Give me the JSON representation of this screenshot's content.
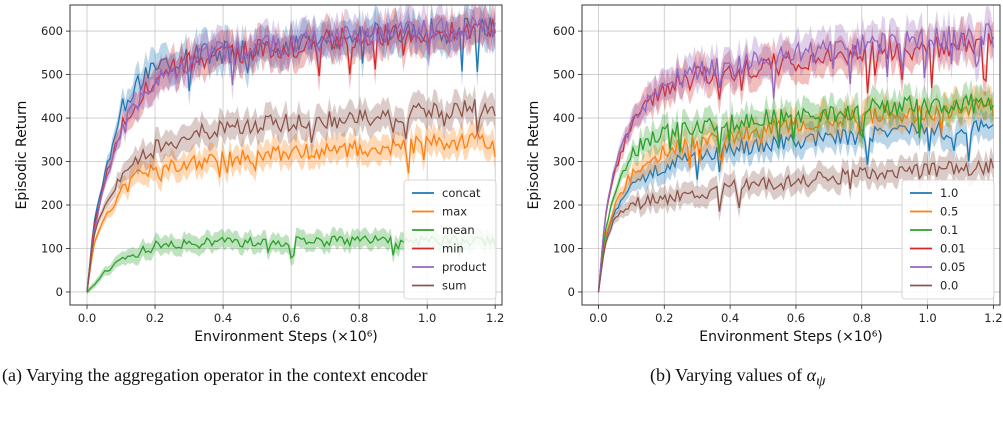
{
  "chart_data": [
    {
      "type": "line",
      "xlabel": "Environment Steps (×10⁶)",
      "ylabel": "Episodic Return",
      "xlim": [
        -0.05,
        1.22
      ],
      "ylim": [
        -30,
        660
      ],
      "xticks": [
        "0.0",
        "0.2",
        "0.4",
        "0.6",
        "0.8",
        "1.0",
        "1.2"
      ],
      "yticks": [
        "0",
        "100",
        "200",
        "300",
        "400",
        "500",
        "600"
      ],
      "grid": true,
      "legend_position": "lower-right",
      "caption": "(a) Varying the aggregation operator in the context encoder",
      "series": [
        {
          "name": "concat",
          "color": "#1f77b4",
          "x": [
            0.0,
            0.02,
            0.05,
            0.1,
            0.15,
            0.2,
            0.3,
            0.4,
            0.6,
            0.8,
            1.0,
            1.2
          ],
          "y": [
            0,
            160,
            260,
            420,
            480,
            520,
            540,
            550,
            570,
            590,
            600,
            605
          ]
        },
        {
          "name": "max",
          "color": "#ff7f0e",
          "x": [
            0.0,
            0.02,
            0.05,
            0.1,
            0.15,
            0.2,
            0.3,
            0.4,
            0.6,
            0.8,
            1.0,
            1.2
          ],
          "y": [
            0,
            110,
            170,
            230,
            265,
            280,
            295,
            305,
            320,
            330,
            340,
            350
          ]
        },
        {
          "name": "mean",
          "color": "#2ca02c",
          "x": [
            0.0,
            0.02,
            0.05,
            0.1,
            0.15,
            0.2,
            0.3,
            0.4,
            0.6,
            0.8,
            1.0,
            1.2
          ],
          "y": [
            0,
            15,
            45,
            70,
            90,
            105,
            112,
            115,
            116,
            118,
            118,
            118
          ]
        },
        {
          "name": "min",
          "color": "#d62728",
          "x": [
            0.0,
            0.02,
            0.05,
            0.1,
            0.15,
            0.2,
            0.3,
            0.4,
            0.6,
            0.8,
            1.0,
            1.2
          ],
          "y": [
            0,
            150,
            250,
            380,
            440,
            490,
            530,
            545,
            565,
            585,
            595,
            600
          ]
        },
        {
          "name": "product",
          "color": "#9467bd",
          "x": [
            0.0,
            0.02,
            0.05,
            0.1,
            0.15,
            0.2,
            0.3,
            0.4,
            0.6,
            0.8,
            1.0,
            1.2
          ],
          "y": [
            0,
            140,
            240,
            370,
            430,
            485,
            530,
            555,
            575,
            590,
            600,
            605
          ]
        },
        {
          "name": "sum",
          "color": "#8c564b",
          "x": [
            0.0,
            0.02,
            0.05,
            0.1,
            0.15,
            0.2,
            0.3,
            0.4,
            0.6,
            0.8,
            1.0,
            1.2
          ],
          "y": [
            0,
            130,
            200,
            260,
            300,
            330,
            360,
            375,
            390,
            400,
            415,
            425
          ]
        }
      ]
    },
    {
      "type": "line",
      "xlabel": "Environment Steps (×10⁶)",
      "ylabel": "Episodic Return",
      "xlim": [
        -0.05,
        1.22
      ],
      "ylim": [
        -30,
        660
      ],
      "xticks": [
        "0.0",
        "0.2",
        "0.4",
        "0.6",
        "0.8",
        "1.0",
        "1.2"
      ],
      "yticks": [
        "0",
        "100",
        "200",
        "300",
        "400",
        "500",
        "600"
      ],
      "grid": true,
      "legend_position": "lower-right",
      "caption_prefix": "(b) Varying values of ",
      "caption_symbol": "α",
      "caption_subscript": "ψ",
      "series": [
        {
          "name": "1.0",
          "color": "#1f77b4",
          "x": [
            0.0,
            0.02,
            0.05,
            0.1,
            0.15,
            0.2,
            0.3,
            0.4,
            0.6,
            0.8,
            1.0,
            1.2
          ],
          "y": [
            0,
            120,
            190,
            240,
            270,
            290,
            310,
            330,
            350,
            360,
            370,
            375
          ]
        },
        {
          "name": "0.5",
          "color": "#ff7f0e",
          "x": [
            0.0,
            0.02,
            0.05,
            0.1,
            0.15,
            0.2,
            0.3,
            0.4,
            0.6,
            0.8,
            1.0,
            1.2
          ],
          "y": [
            0,
            125,
            200,
            270,
            300,
            320,
            345,
            360,
            390,
            405,
            415,
            425
          ]
        },
        {
          "name": "0.1",
          "color": "#2ca02c",
          "x": [
            0.0,
            0.02,
            0.05,
            0.1,
            0.15,
            0.2,
            0.3,
            0.4,
            0.6,
            0.8,
            1.0,
            1.2
          ],
          "y": [
            0,
            140,
            230,
            320,
            350,
            365,
            380,
            390,
            405,
            420,
            430,
            435
          ]
        },
        {
          "name": "0.01",
          "color": "#d62728",
          "x": [
            0.0,
            0.02,
            0.05,
            0.1,
            0.15,
            0.2,
            0.3,
            0.4,
            0.6,
            0.8,
            1.0,
            1.2
          ],
          "y": [
            0,
            170,
            280,
            380,
            430,
            470,
            495,
            510,
            530,
            550,
            565,
            575
          ]
        },
        {
          "name": "0.05",
          "color": "#9467bd",
          "x": [
            0.0,
            0.02,
            0.05,
            0.1,
            0.15,
            0.2,
            0.3,
            0.4,
            0.6,
            0.8,
            1.0,
            1.2
          ],
          "y": [
            0,
            175,
            290,
            390,
            440,
            480,
            505,
            520,
            545,
            565,
            580,
            590
          ]
        },
        {
          "name": "0.0",
          "color": "#8c564b",
          "x": [
            0.0,
            0.02,
            0.05,
            0.1,
            0.15,
            0.2,
            0.3,
            0.4,
            0.6,
            0.8,
            1.0,
            1.2
          ],
          "y": [
            0,
            110,
            170,
            200,
            210,
            215,
            225,
            240,
            255,
            270,
            280,
            290
          ]
        }
      ]
    }
  ]
}
